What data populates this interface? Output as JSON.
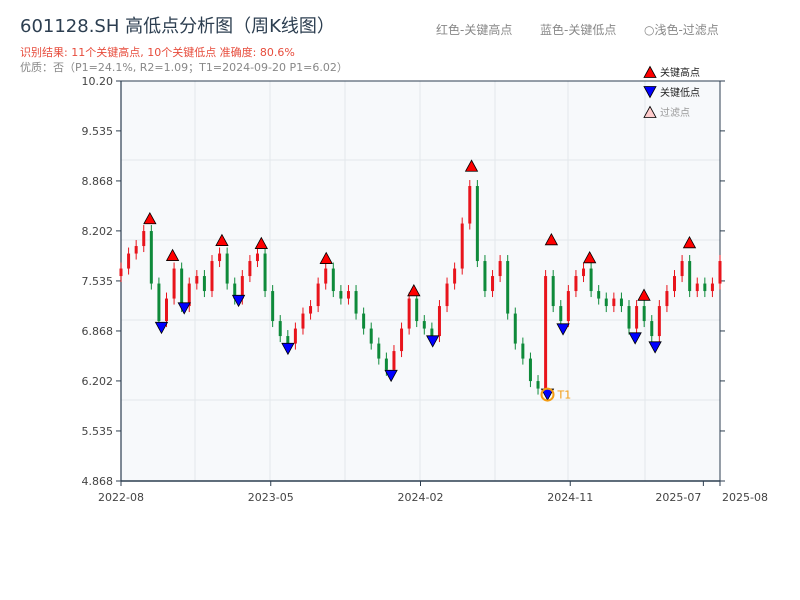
{
  "header": {
    "title": "601128.SH 高低点分析图（周K线图）",
    "result_line": "识别结果: 11个关键高点, 10个关键低点  准确度: 80.6%",
    "quality_line": "优质：否（P1=24.1%, R2=1.09；T1=2024-09-20 P1=6.02）",
    "legend_red": "红色-关键高点",
    "legend_blue": "蓝色-关键低点",
    "legend_light": "○浅色-过滤点"
  },
  "chart_data": {
    "type": "candlestick",
    "xlim": [
      "2022-08",
      "2025-08"
    ],
    "ylim": [
      4.868,
      10.2
    ],
    "y_ticks": [
      "10.20",
      "9.535",
      "8.868",
      "8.202",
      "7.535",
      "6.868",
      "6.202",
      "5.535",
      "4.868"
    ],
    "x_ticks": [
      {
        "label": "2022-08",
        "month": "2022-08"
      },
      {
        "label": "2023-05",
        "month": "2023-05"
      },
      {
        "label": "2024-02",
        "month": "2024-02"
      },
      {
        "label": "2024-11",
        "month": "2024-11"
      },
      {
        "label": "2025-07",
        "month": "2025-07"
      },
      {
        "label": "2025-08",
        "month": "2025-08"
      }
    ],
    "grid": true,
    "up_color": "#e8141c",
    "down_color": "#0e8a3a",
    "closes": [
      7.7,
      7.9,
      8.0,
      8.2,
      7.5,
      7.0,
      7.3,
      7.7,
      7.2,
      7.5,
      7.6,
      7.4,
      7.8,
      7.9,
      7.5,
      7.3,
      7.6,
      7.8,
      7.9,
      7.4,
      7.0,
      6.8,
      6.7,
      6.9,
      7.1,
      7.2,
      7.5,
      7.7,
      7.4,
      7.3,
      7.4,
      7.1,
      6.9,
      6.7,
      6.5,
      6.35,
      6.6,
      6.9,
      7.3,
      7.0,
      6.9,
      6.8,
      7.2,
      7.5,
      7.7,
      8.3,
      8.8,
      7.8,
      7.4,
      7.6,
      7.8,
      7.1,
      6.7,
      6.5,
      6.2,
      6.1,
      7.6,
      7.2,
      7.0,
      7.4,
      7.6,
      7.7,
      7.4,
      7.3,
      7.2,
      7.3,
      7.2,
      6.9,
      7.2,
      7.0,
      6.8,
      7.2,
      7.4,
      7.6,
      7.8,
      7.4,
      7.5,
      7.4,
      7.5,
      7.8
    ],
    "key_highs": [
      {
        "date": "2022-09-23",
        "value": 8.37
      },
      {
        "date": "2022-11-04",
        "value": 7.88
      },
      {
        "date": "2023-02-03",
        "value": 8.08
      },
      {
        "date": "2023-04-14",
        "value": 8.04
      },
      {
        "date": "2023-08-11",
        "value": 7.84
      },
      {
        "date": "2024-01-19",
        "value": 7.41
      },
      {
        "date": "2024-05-03",
        "value": 9.07
      },
      {
        "date": "2024-09-27",
        "value": 8.09
      },
      {
        "date": "2024-12-06",
        "value": 7.85
      },
      {
        "date": "2025-03-14",
        "value": 7.35
      },
      {
        "date": "2025-06-06",
        "value": 8.05
      }
    ],
    "key_lows": [
      {
        "date": "2022-10-14",
        "value": 6.91
      },
      {
        "date": "2022-11-25",
        "value": 7.17
      },
      {
        "date": "2023-03-03",
        "value": 7.27
      },
      {
        "date": "2023-06-02",
        "value": 6.63
      },
      {
        "date": "2023-12-08",
        "value": 6.27
      },
      {
        "date": "2024-02-23",
        "value": 6.73
      },
      {
        "date": "2024-09-20",
        "value": 6.02
      },
      {
        "date": "2024-10-18",
        "value": 6.89
      },
      {
        "date": "2025-02-28",
        "value": 6.77
      },
      {
        "date": "2025-04-04",
        "value": 6.65
      }
    ],
    "t1": {
      "label": "T1",
      "date": "2024-09-20",
      "value": 6.02,
      "color": "#f39c12"
    },
    "legend": {
      "placement": "top-right",
      "items": [
        {
          "label": "关键高点",
          "color": "#ff0000",
          "marker": "triangle-up"
        },
        {
          "label": "关键低点",
          "color": "#0000ff",
          "marker": "triangle-down"
        },
        {
          "label": "过滤点",
          "color": "#ffcccc",
          "marker": "triangle-up-light"
        }
      ]
    }
  }
}
